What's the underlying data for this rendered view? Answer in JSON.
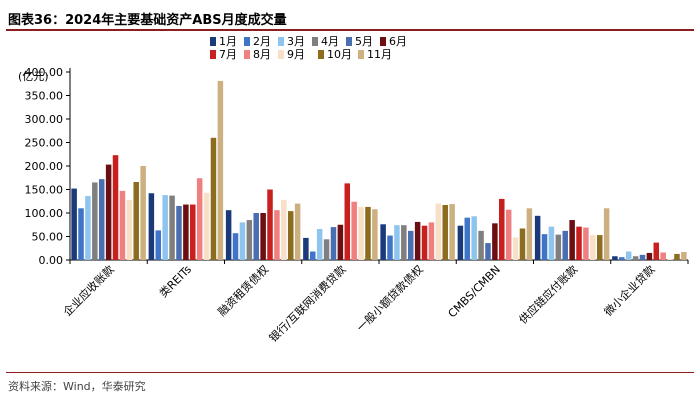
{
  "figure_title": "图表36：2024年主要基础资产ABS月度成交量",
  "source_note": "资料来源：Wind，华泰研究",
  "colors": {
    "title_rule": "#8b1f1f",
    "axis": "#000000",
    "series": [
      "#1a3a7a",
      "#3f74c6",
      "#8ec5ee",
      "#7f7f7f",
      "#4a6fb0",
      "#6b0f12",
      "#c81f1f",
      "#f07f7f",
      "#f7dfc8",
      "#8c6d1f",
      "#cdb07f"
    ]
  },
  "chart_data": {
    "type": "bar",
    "ylabel": "(亿元)",
    "ylim": [
      0,
      400
    ],
    "yticks": [
      "0.00",
      "50.00",
      "100.00",
      "150.00",
      "200.00",
      "250.00",
      "300.00",
      "350.00",
      "400.00"
    ],
    "grid": false,
    "legend_position": "top",
    "categories": [
      "企业应收账款",
      "类REITs",
      "融资租赁债权",
      "银行/互联网消费贷款",
      "一般小额贷款债权",
      "CMBS/CMBN",
      "供应链应付账款",
      "微小企业贷款"
    ],
    "series": [
      {
        "name": "1月",
        "values": [
          152,
          142,
          106,
          47,
          76,
          73,
          94,
          8
        ]
      },
      {
        "name": "2月",
        "values": [
          110,
          63,
          57,
          18,
          52,
          90,
          55,
          6
        ]
      },
      {
        "name": "3月",
        "values": [
          136,
          138,
          80,
          66,
          74,
          93,
          71,
          18
        ]
      },
      {
        "name": "4月",
        "values": [
          165,
          137,
          85,
          44,
          74,
          62,
          54,
          8
        ]
      },
      {
        "name": "5月",
        "values": [
          172,
          115,
          100,
          70,
          62,
          36,
          62,
          11
        ]
      },
      {
        "name": "6月",
        "values": [
          203,
          118,
          100,
          75,
          81,
          78,
          85,
          15
        ]
      },
      {
        "name": "7月",
        "values": [
          223,
          118,
          150,
          163,
          73,
          130,
          71,
          37
        ]
      },
      {
        "name": "8月",
        "values": [
          147,
          174,
          106,
          124,
          80,
          107,
          69,
          16
        ]
      },
      {
        "name": "9月",
        "values": [
          128,
          143,
          128,
          113,
          120,
          48,
          53,
          2
        ]
      },
      {
        "name": "10月",
        "values": [
          166,
          260,
          104,
          113,
          117,
          67,
          53,
          13
        ]
      },
      {
        "name": "11月",
        "values": [
          200,
          381,
          120,
          108,
          119,
          110,
          110,
          17
        ]
      }
    ]
  }
}
